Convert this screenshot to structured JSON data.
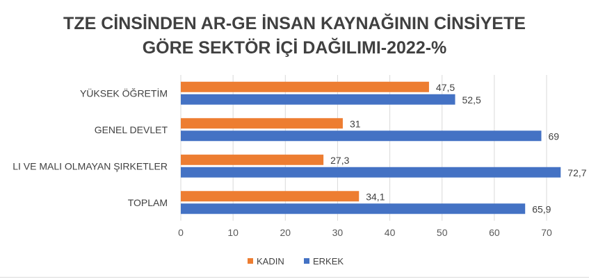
{
  "chart_data": {
    "type": "bar",
    "orientation": "horizontal",
    "title": "TZE CİNSİNDEN AR-GE İNSAN KAYNAĞININ CİNSİYETE GÖRE SEKTÖR İÇİ DAĞILIMI-2022-%",
    "title_lines": [
      "TZE CİNSİNDEN AR-GE İNSAN KAYNAĞININ CİNSİYETE",
      "GÖRE SEKTÖR İÇİ DAĞILIMI-2022-%"
    ],
    "categories": [
      "YÜKSEK ÖĞRETİM",
      "GENEL DEVLET",
      "LI VE MALI OLMAYAN ŞIRKETLER",
      "TOPLAM"
    ],
    "series": [
      {
        "name": "KADIN",
        "color": "#ED7D31",
        "values": [
          47.5,
          31,
          27.3,
          34.1
        ],
        "labels": [
          "47,5",
          "31",
          "27,3",
          "34,1"
        ]
      },
      {
        "name": "ERKEK",
        "color": "#4472C4",
        "values": [
          52.5,
          69,
          72.7,
          65.9
        ],
        "labels": [
          "52,5",
          "69",
          "72,7",
          "65,9"
        ]
      }
    ],
    "xlim": [
      0,
      70
    ],
    "xticks": [
      0,
      10,
      20,
      30,
      40,
      50,
      60,
      70
    ],
    "xlabel": "",
    "ylabel": "",
    "grid": "vertical",
    "legend": "bottom"
  }
}
